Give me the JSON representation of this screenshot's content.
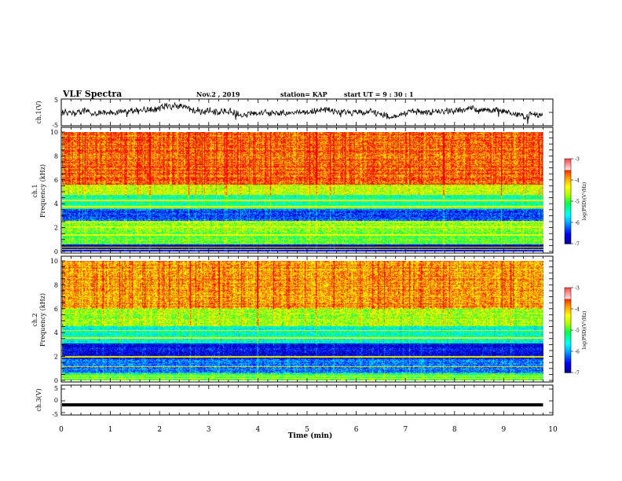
{
  "header": {
    "title": "VLF Spectra",
    "date": "Nov.2 , 2019",
    "station": "station= KAP",
    "start_time": "start UT = 9 : 30 : 1"
  },
  "chart_data": [
    {
      "type": "line",
      "name_panel": "ch1_waveform",
      "ylabel": "ch.1(V)",
      "ylim": [
        -5,
        5
      ],
      "yticks": [
        "5",
        "-5"
      ],
      "x_range": [
        0,
        10
      ],
      "data_end": 9.8,
      "trace_level": 0.2,
      "trace_amplitude": 2.2,
      "trace_color": "#000000"
    },
    {
      "type": "heatmap",
      "name_panel": "ch1_spectrogram",
      "ylabel_channel": "ch.1",
      "ylabel": "Frequency (kHz)",
      "ylim": [
        0,
        10
      ],
      "yticks": [
        "0",
        "2",
        "4",
        "6",
        "8",
        "10"
      ],
      "x_range": [
        0,
        10
      ],
      "data_end": 9.8,
      "colorbar": {
        "label": "log(PSD)(V²/Hz)",
        "range": [
          -7,
          -3
        ],
        "ticks": [
          "-3",
          "-4",
          "-5",
          "-6",
          "-7"
        ],
        "colors": [
          "#0000cc",
          "#0000ff",
          "#00ffff",
          "#00ff00",
          "#ffff00",
          "#ff0000",
          "#ff8080",
          "#ffc0c0",
          "#ffffff"
        ]
      },
      "bands_kHz": [
        [
          0,
          0.6,
          -6.8
        ],
        [
          0.6,
          1.8,
          -4.9
        ],
        [
          1.8,
          2.6,
          -4.7
        ],
        [
          2.6,
          3.6,
          -6.3
        ],
        [
          3.6,
          4.8,
          -5.3
        ],
        [
          4.8,
          5.6,
          -4.5
        ],
        [
          5.6,
          10,
          -3.7
        ]
      ],
      "lines_kHz": [
        0.2,
        0.4,
        1.4,
        2.1,
        2.5,
        3.8,
        4.3
      ]
    },
    {
      "type": "heatmap",
      "name_panel": "ch2_spectrogram",
      "ylabel_channel": "ch.2",
      "ylabel": "Frequency (kHz)",
      "ylim": [
        0,
        10
      ],
      "yticks": [
        "0",
        "2",
        "4",
        "6",
        "8",
        "10"
      ],
      "x_range": [
        0,
        10
      ],
      "data_end": 9.8,
      "colorbar": {
        "label": "log(PSD)(V²/Hz)",
        "range": [
          -7,
          -3
        ],
        "ticks": [
          "-3",
          "-4",
          "-5",
          "-6",
          "-7"
        ],
        "colors": [
          "#0000cc",
          "#0000ff",
          "#00ffff",
          "#00ff00",
          "#ffff00",
          "#ff0000",
          "#ff8080",
          "#ffc0c0",
          "#ffffff"
        ]
      },
      "bands_kHz": [
        [
          0,
          0.6,
          -5.0
        ],
        [
          0.6,
          1.8,
          -6.1
        ],
        [
          1.8,
          3.1,
          -6.6
        ],
        [
          3.1,
          4.6,
          -5.5
        ],
        [
          4.6,
          6.0,
          -4.6
        ],
        [
          6.0,
          10,
          -3.9
        ]
      ],
      "lines_kHz": [
        0.2,
        0.4,
        1.2,
        2.0,
        3.6,
        4.2
      ]
    },
    {
      "type": "line",
      "name_panel": "ch3_waveform",
      "ylabel": "ch.3(V)",
      "ylim": [
        -5,
        5
      ],
      "yticks": [
        "5",
        "0",
        "-5"
      ],
      "x_range": [
        0,
        10
      ],
      "data_end": 9.8,
      "trace_level": -1.7,
      "trace_color": "#000000",
      "xlabel": "Time (min)",
      "xticks": [
        "0",
        "1",
        "2",
        "3",
        "4",
        "5",
        "6",
        "7",
        "8",
        "9",
        "10"
      ]
    }
  ]
}
